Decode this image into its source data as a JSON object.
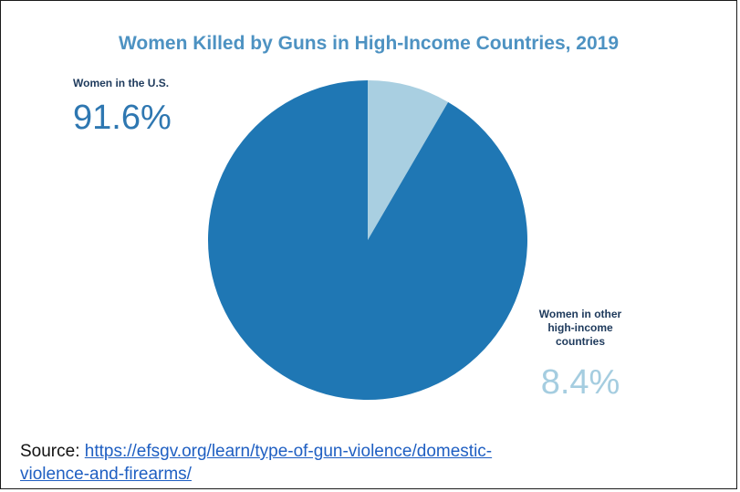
{
  "chart_data": {
    "type": "pie",
    "title": "Women Killed by Guns in High-Income Countries, 2019",
    "categories": [
      "Women in the U.S.",
      "Women in other high-income countries"
    ],
    "values": [
      91.6,
      8.4
    ],
    "value_labels": [
      "91.6%",
      "8.4%"
    ],
    "colors": [
      "#1f77b4",
      "#a9cfe1"
    ],
    "start": "top, clockwise with smaller slice first",
    "legend": "none",
    "grid": false
  },
  "labels": {
    "us_label": "Women in the U.S.",
    "us_pct": "91.6%",
    "other_label_line1": "Women in other",
    "other_label_line2": "high-income",
    "other_label_line3": "countries",
    "other_pct": "8.4%"
  },
  "source": {
    "prefix": "Source: ",
    "link_line1": "https://efsgv.org/learn/type-of-gun-violence/domestic-",
    "link_line2": "violence-and-firearms/"
  }
}
